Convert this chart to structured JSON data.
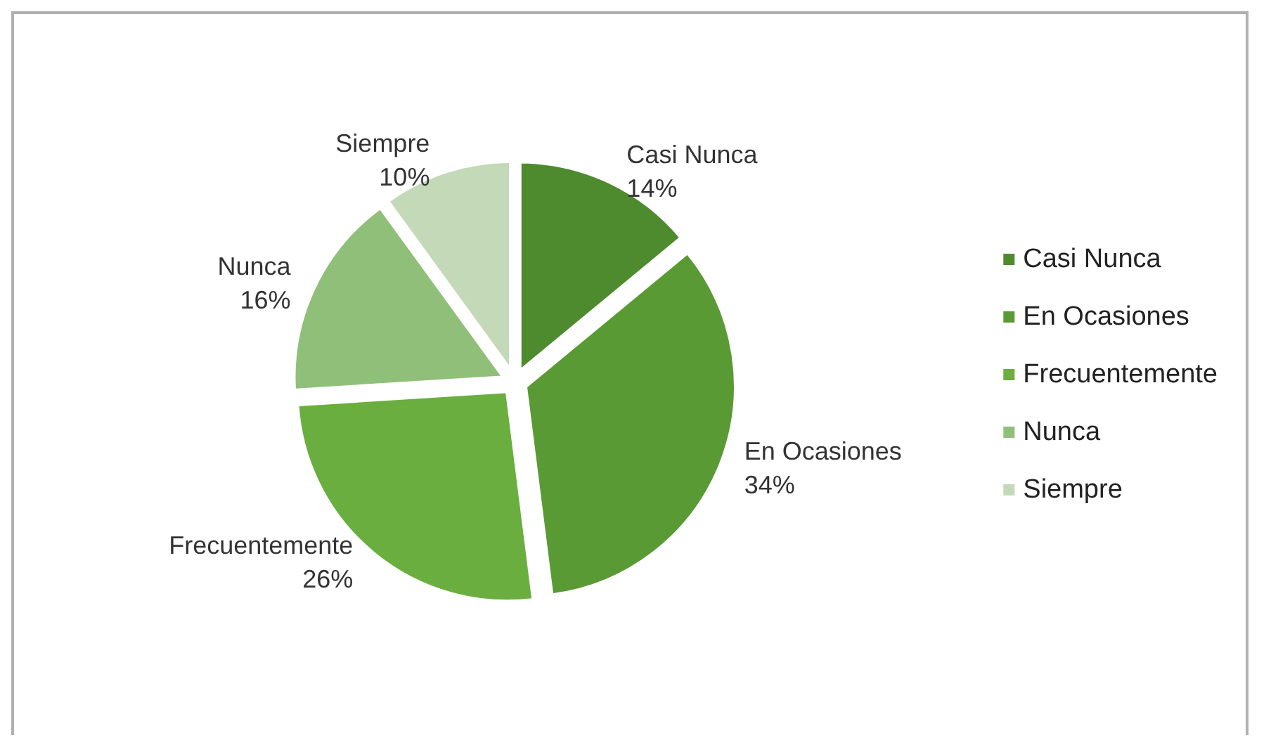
{
  "chart_data": {
    "type": "pie",
    "categories": [
      "Casi Nunca",
      "En Ocasiones",
      "Frecuentemente",
      "Nunca",
      "Siempre"
    ],
    "values": [
      14,
      34,
      26,
      16,
      10
    ],
    "colors": [
      "#4e8a2e",
      "#5a9a35",
      "#6aae3f",
      "#8fbf78",
      "#c3d9b8"
    ],
    "value_labels": [
      "14%",
      "34%",
      "26%",
      "16%",
      "10%"
    ],
    "legend": "right"
  }
}
